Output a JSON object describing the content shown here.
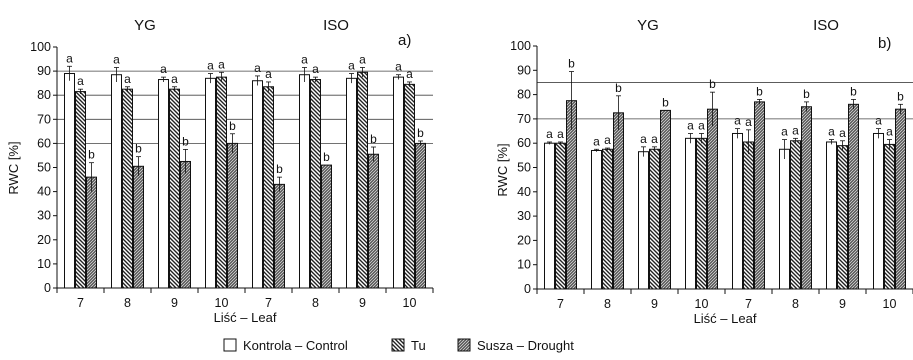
{
  "figure": {
    "legend": [
      {
        "label": "Kontrola – Control",
        "pattern": "white"
      },
      {
        "label": "Tu",
        "pattern": "hatch-back"
      },
      {
        "label": "Susza – Drought",
        "pattern": "hatch-dense"
      }
    ]
  },
  "chart_data": [
    {
      "type": "bar",
      "panel_label": "a)",
      "group_labels": [
        "YG",
        "ISO"
      ],
      "categories": [
        "7",
        "8",
        "9",
        "10",
        "7",
        "8",
        "9",
        "10"
      ],
      "xlabel": "Liść – Leaf",
      "ylabel": "RWC [%]",
      "ylim": [
        0,
        100
      ],
      "yticks": [
        0,
        10,
        20,
        30,
        40,
        50,
        60,
        70,
        80,
        90,
        100
      ],
      "gridlines": [
        60,
        70,
        80,
        90
      ],
      "series": [
        {
          "name": "Kontrola – Control",
          "values": [
            89,
            88.5,
            86.5,
            87,
            86,
            88.5,
            87,
            87.5
          ],
          "errors": [
            3,
            3,
            1,
            2,
            2,
            3,
            2,
            1
          ],
          "letters": [
            "a",
            "a",
            "a",
            "a",
            "a",
            "a",
            "a",
            "a"
          ]
        },
        {
          "name": "Tu",
          "values": [
            81.5,
            82.5,
            82.5,
            87.5,
            83.5,
            86.5,
            89.5,
            84.5
          ],
          "errors": [
            1,
            1,
            1,
            2,
            2,
            1,
            2,
            1
          ],
          "letters": [
            "a",
            "a",
            "a",
            "a",
            "a",
            "a",
            "a",
            "a"
          ]
        },
        {
          "name": "Susza – Drought",
          "values": [
            46,
            50.5,
            52.5,
            60,
            43,
            51,
            55.5,
            60
          ],
          "errors": [
            6,
            4,
            5,
            4,
            3,
            0,
            3,
            1
          ],
          "letters": [
            "b",
            "b",
            "b",
            "b",
            "b",
            "b",
            "b",
            "b"
          ]
        }
      ]
    },
    {
      "type": "bar",
      "panel_label": "b)",
      "group_labels": [
        "YG",
        "ISO"
      ],
      "categories": [
        "7",
        "8",
        "9",
        "10",
        "7",
        "8",
        "9",
        "10"
      ],
      "xlabel": "Liść – Leaf",
      "ylabel": "RWC [%]",
      "ylim": [
        0,
        100
      ],
      "yticks": [
        0,
        10,
        20,
        30,
        40,
        50,
        60,
        70,
        80,
        90,
        100
      ],
      "gridlines": [
        70,
        85
      ],
      "series": [
        {
          "name": "Kontrola – Control",
          "values": [
            60,
            57,
            56.5,
            62,
            64,
            57.5,
            60.5,
            64
          ],
          "errors": [
            0.5,
            0.5,
            2,
            2,
            2,
            4,
            1,
            2
          ],
          "letters": [
            "a",
            "a",
            "a",
            "a",
            "a",
            "a",
            "a",
            "a"
          ]
        },
        {
          "name": "Tu",
          "values": [
            60,
            57.5,
            57.5,
            62,
            60.5,
            61,
            59,
            59.5
          ],
          "errors": [
            0.5,
            0.5,
            1,
            2,
            5,
            1,
            2,
            2
          ],
          "letters": [
            "a",
            "a",
            "a",
            "a",
            "a",
            "a",
            "a",
            "a"
          ]
        },
        {
          "name": "Susza – Drought",
          "values": [
            77.5,
            72.5,
            73.5,
            74,
            77,
            75,
            76,
            74
          ],
          "errors": [
            12,
            7,
            0,
            7,
            1,
            2,
            2,
            2
          ],
          "letters": [
            "b",
            "b",
            "b",
            "b",
            "b",
            "b",
            "b",
            "b"
          ]
        }
      ]
    }
  ]
}
